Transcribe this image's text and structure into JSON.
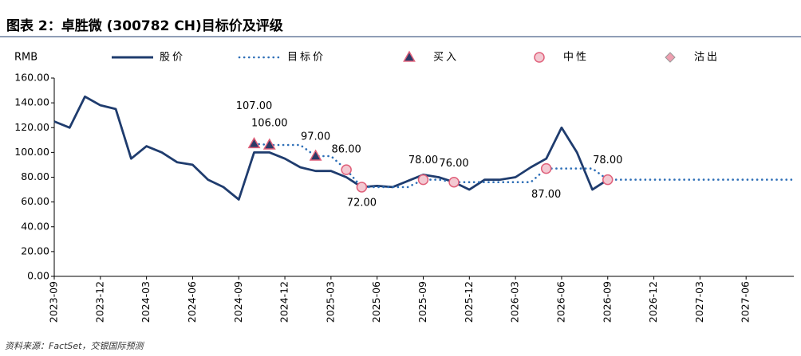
{
  "chart_data": {
    "type": "line",
    "title": "图表 2：卓胜微 (300782 CH)目标价及评级",
    "y_label": "RMB",
    "source": "资料来源：FactSet，交银国际预测",
    "xlim": [
      "2023-09",
      "2027-09"
    ],
    "xticks": [
      "2023-09",
      "2023-12",
      "2024-03",
      "2024-06",
      "2024-09",
      "2024-12",
      "2025-03",
      "2025-06",
      "2025-09",
      "2025-12",
      "2026-03",
      "2026-06",
      "2026-09",
      "2026-12",
      "2027-03",
      "2027-06"
    ],
    "ylim": [
      0,
      160
    ],
    "yticks": [
      {
        "value": 0,
        "label": "0.00"
      },
      {
        "value": 20,
        "label": "20.00"
      },
      {
        "value": 40,
        "label": "40.00"
      },
      {
        "value": 60,
        "label": "60.00"
      },
      {
        "value": 80,
        "label": "80.00"
      },
      {
        "value": 100,
        "label": "100.00"
      },
      {
        "value": 120,
        "label": "120.00"
      },
      {
        "value": 140,
        "label": "140.00"
      },
      {
        "value": 160,
        "label": "160.00"
      }
    ],
    "series": [
      {
        "name": "股价",
        "style": "line",
        "color": "#1f3c6e",
        "x": [
          "2023-09",
          "2023-10",
          "2023-11",
          "2023-12",
          "2024-01",
          "2024-02",
          "2024-03",
          "2024-04",
          "2024-05",
          "2024-06",
          "2024-07",
          "2024-08",
          "2024-09",
          "2024-10",
          "2024-11",
          "2024-12",
          "2025-01",
          "2025-02",
          "2025-03",
          "2025-04",
          "2025-05",
          "2025-06",
          "2025-07",
          "2025-08",
          "2025-09",
          "2025-10",
          "2025-11",
          "2025-12",
          "2026-01",
          "2026-02",
          "2026-03",
          "2026-04",
          "2026-05",
          "2026-06",
          "2026-07",
          "2026-08",
          "2026-09"
        ],
        "values": [
          125,
          120,
          145,
          138,
          135,
          95,
          105,
          100,
          92,
          90,
          78,
          72,
          62,
          100,
          100,
          95,
          88,
          85,
          85,
          80,
          72,
          73,
          72,
          77,
          82,
          80,
          76,
          70,
          78,
          78,
          80,
          88,
          95,
          120,
          100,
          70,
          78
        ]
      },
      {
        "name": "目标价",
        "style": "dotted",
        "color": "#2e6fb7",
        "x": [
          "2024-10",
          "2024-11",
          "2024-12",
          "2025-01",
          "2025-02",
          "2025-03",
          "2025-04",
          "2025-05",
          "2025-06",
          "2025-07",
          "2025-08",
          "2025-09",
          "2025-10",
          "2025-11",
          "2025-12",
          "2026-01",
          "2026-02",
          "2026-03",
          "2026-04",
          "2026-05",
          "2026-06",
          "2026-07",
          "2026-08",
          "2026-09",
          "2026-10",
          "2026-11",
          "2026-12",
          "2027-01",
          "2027-02",
          "2027-03",
          "2027-04",
          "2027-05",
          "2027-06",
          "2027-07",
          "2027-08",
          "2027-09"
        ],
        "values": [
          107,
          106,
          106,
          106,
          97,
          97,
          86,
          72,
          72,
          72,
          72,
          78,
          78,
          76,
          76,
          76,
          76,
          76,
          76,
          87,
          87,
          87,
          87,
          78,
          78,
          78,
          78,
          78,
          78,
          78,
          78,
          78,
          78,
          78,
          78,
          78
        ]
      },
      {
        "name": "买入",
        "style": "triangle",
        "color": "#2b3a67",
        "x": [
          "2024-10",
          "2024-11",
          "2025-02"
        ],
        "values": [
          107,
          106,
          97
        ],
        "value_labels": [
          "107.00",
          "106.00",
          "97.00"
        ]
      },
      {
        "name": "中性",
        "style": "circle",
        "color": "#f3c9d2",
        "x": [
          "2025-04",
          "2025-05",
          "2025-09",
          "2025-11",
          "2026-05",
          "2026-09"
        ],
        "values": [
          86,
          72,
          78,
          76,
          87,
          78
        ],
        "value_labels": [
          "86.00",
          "72.00",
          "78.00",
          "76.00",
          "87.00",
          "78.00"
        ]
      },
      {
        "name": "沽出",
        "style": "diamond",
        "color": "#ee9fb0",
        "x": [],
        "values": [],
        "value_labels": []
      }
    ]
  }
}
